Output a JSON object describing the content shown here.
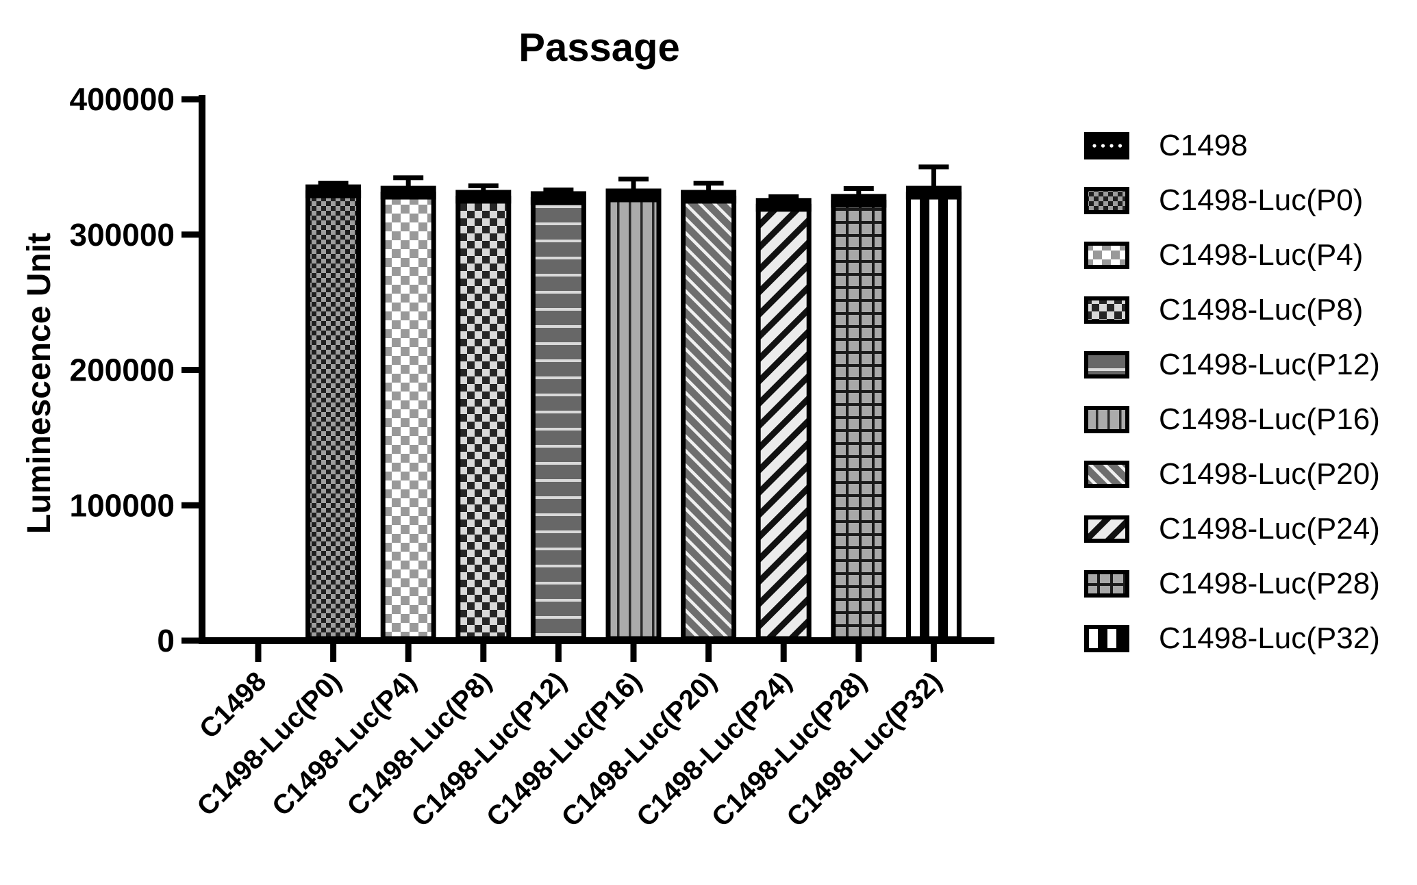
{
  "title": "Passage",
  "chart_data": {
    "type": "bar",
    "title": "Passage",
    "xlabel": "",
    "ylabel": "Luminescence Unit",
    "ylim": [
      0,
      400000
    ],
    "yticks": [
      0,
      100000,
      200000,
      300000,
      400000
    ],
    "grid": false,
    "legend_position": "right",
    "categories": [
      "C1498",
      "C1498-Luc(P0)",
      "C1498-Luc(P4)",
      "C1498-Luc(P8)",
      "C1498-Luc(P12)",
      "C1498-Luc(P16)",
      "C1498-Luc(P20)",
      "C1498-Luc(P24)",
      "C1498-Luc(P28)",
      "C1498-Luc(P32)"
    ],
    "values": [
      0,
      335000,
      334000,
      331000,
      330000,
      332000,
      331000,
      325000,
      328000,
      334000
    ],
    "errors_plus": [
      0,
      3000,
      8000,
      5000,
      3000,
      9000,
      7000,
      3000,
      6000,
      16000
    ],
    "bar_patterns": [
      "dots-on-black",
      "checker-fine-dark",
      "checker-white-gray",
      "checker-dark-light",
      "stripes-horizontal",
      "stripes-vertical",
      "stripes-diagonal-down",
      "stripes-diagonal-up",
      "grid-squares",
      "black-white-bands"
    ],
    "legend_entries": [
      "C1498",
      "C1498-Luc(P0)",
      "C1498-Luc(P4)",
      "C1498-Luc(P8)",
      "C1498-Luc(P12)",
      "C1498-Luc(P16)",
      "C1498-Luc(P20)",
      "C1498-Luc(P24)",
      "C1498-Luc(P28)",
      "C1498-Luc(P32)"
    ]
  },
  "colors": {
    "ink": "#000000",
    "background": "#ffffff",
    "checker_fine_bg": "#9e9e9e",
    "checker_fine_fg": "#1f1f1f",
    "checker_white_bg": "#ffffff",
    "checker_white_fg": "#999999",
    "checker_light_bg": "#d9d9d9",
    "checker_light_fg": "#262626",
    "hstripe_bg": "#676767",
    "hstripe_fg": "#d9d9d9",
    "vstripe_bg": "#ababab",
    "vstripe_fg": "#2a2a2a",
    "diag_down_bg": "#6e6e6e",
    "diag_down_fg": "#f0f0f0",
    "diag_up_bg": "#ebebeb",
    "diag_up_fg": "#111111",
    "grid_bg": "#a8a8a8",
    "grid_fg": "#1a1a1a",
    "bands_bg": "#000000",
    "bands_fg": "#ffffff"
  }
}
